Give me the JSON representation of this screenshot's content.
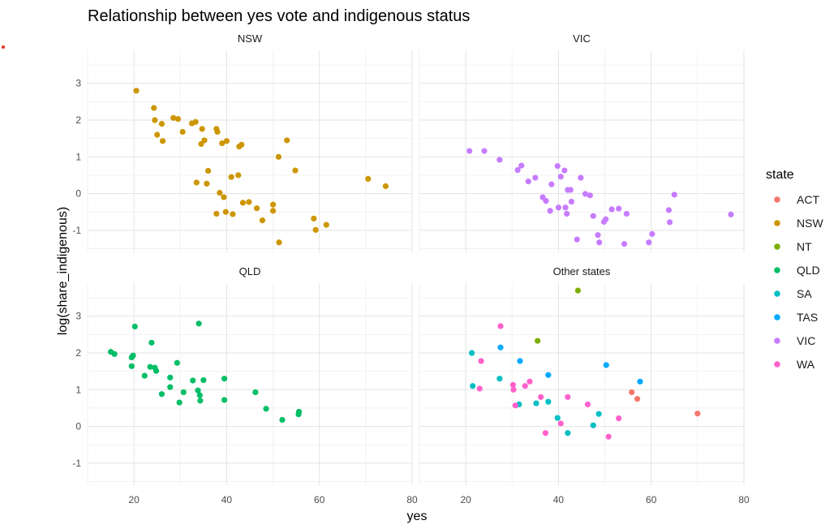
{
  "chart_data": {
    "type": "scatter",
    "title": "Relationship between yes vote and indigenous status",
    "xlabel": "yes",
    "ylabel": "log(share_indigenous)",
    "xlim": [
      10,
      80
    ],
    "ylim": [
      -1.6,
      3.9
    ],
    "xticks": [
      20,
      40,
      60,
      80
    ],
    "yticks": [
      -1,
      0,
      1,
      2,
      3
    ],
    "legend": {
      "title": "state",
      "placement": "right",
      "entries": [
        {
          "name": "ACT",
          "color": "#F8766D"
        },
        {
          "name": "NSW",
          "color": "#CD9600"
        },
        {
          "name": "NT",
          "color": "#7CAE00"
        },
        {
          "name": "QLD",
          "color": "#00BE67"
        },
        {
          "name": "SA",
          "color": "#00BFC4"
        },
        {
          "name": "TAS",
          "color": "#00A9FF"
        },
        {
          "name": "VIC",
          "color": "#C77CFF"
        },
        {
          "name": "WA",
          "color": "#FF61CC"
        }
      ]
    },
    "panels": [
      {
        "title": "NSW",
        "points": [
          {
            "state": "NSW",
            "x": 20.5,
            "y": 2.8
          },
          {
            "state": "NSW",
            "x": 24.3,
            "y": 2.33
          },
          {
            "state": "NSW",
            "x": 24.5,
            "y": 2.0
          },
          {
            "state": "NSW",
            "x": 26.0,
            "y": 1.9
          },
          {
            "state": "NSW",
            "x": 25.0,
            "y": 1.6
          },
          {
            "state": "NSW",
            "x": 26.2,
            "y": 1.43
          },
          {
            "state": "NSW",
            "x": 28.5,
            "y": 2.06
          },
          {
            "state": "NSW",
            "x": 29.5,
            "y": 2.03
          },
          {
            "state": "NSW",
            "x": 30.5,
            "y": 1.68
          },
          {
            "state": "NSW",
            "x": 32.5,
            "y": 1.91
          },
          {
            "state": "NSW",
            "x": 33.3,
            "y": 1.95
          },
          {
            "state": "NSW",
            "x": 34.7,
            "y": 1.76
          },
          {
            "state": "NSW",
            "x": 35.2,
            "y": 1.45
          },
          {
            "state": "NSW",
            "x": 34.5,
            "y": 1.35
          },
          {
            "state": "NSW",
            "x": 37.8,
            "y": 1.76
          },
          {
            "state": "NSW",
            "x": 38.0,
            "y": 1.68
          },
          {
            "state": "NSW",
            "x": 39.0,
            "y": 1.37
          },
          {
            "state": "NSW",
            "x": 40.0,
            "y": 1.43
          },
          {
            "state": "NSW",
            "x": 42.7,
            "y": 1.28
          },
          {
            "state": "NSW",
            "x": 43.2,
            "y": 1.33
          },
          {
            "state": "NSW",
            "x": 33.5,
            "y": 0.3
          },
          {
            "state": "NSW",
            "x": 36.0,
            "y": 0.62
          },
          {
            "state": "NSW",
            "x": 35.7,
            "y": 0.27
          },
          {
            "state": "NSW",
            "x": 38.5,
            "y": 0.02
          },
          {
            "state": "NSW",
            "x": 39.4,
            "y": -0.1
          },
          {
            "state": "NSW",
            "x": 37.8,
            "y": -0.55
          },
          {
            "state": "NSW",
            "x": 39.8,
            "y": -0.5
          },
          {
            "state": "NSW",
            "x": 41.3,
            "y": -0.56
          },
          {
            "state": "NSW",
            "x": 41.0,
            "y": 0.45
          },
          {
            "state": "NSW",
            "x": 42.5,
            "y": 0.5
          },
          {
            "state": "NSW",
            "x": 43.5,
            "y": -0.25
          },
          {
            "state": "NSW",
            "x": 44.8,
            "y": -0.23
          },
          {
            "state": "NSW",
            "x": 46.5,
            "y": -0.4
          },
          {
            "state": "NSW",
            "x": 47.7,
            "y": -0.73
          },
          {
            "state": "NSW",
            "x": 50.0,
            "y": -0.3
          },
          {
            "state": "NSW",
            "x": 50.0,
            "y": -0.47
          },
          {
            "state": "NSW",
            "x": 51.2,
            "y": 1.0
          },
          {
            "state": "NSW",
            "x": 51.3,
            "y": -1.33
          },
          {
            "state": "NSW",
            "x": 53.0,
            "y": 1.45
          },
          {
            "state": "NSW",
            "x": 54.8,
            "y": 0.63
          },
          {
            "state": "NSW",
            "x": 58.8,
            "y": -0.68
          },
          {
            "state": "NSW",
            "x": 59.2,
            "y": -0.99
          },
          {
            "state": "NSW",
            "x": 61.5,
            "y": -0.85
          },
          {
            "state": "NSW",
            "x": 70.5,
            "y": 0.4
          },
          {
            "state": "NSW",
            "x": 74.3,
            "y": 0.2
          }
        ]
      },
      {
        "title": "VIC",
        "points": [
          {
            "state": "VIC",
            "x": 20.8,
            "y": 1.16
          },
          {
            "state": "VIC",
            "x": 24.0,
            "y": 1.16
          },
          {
            "state": "VIC",
            "x": 27.3,
            "y": 0.92
          },
          {
            "state": "VIC",
            "x": 31.2,
            "y": 0.64
          },
          {
            "state": "VIC",
            "x": 32.0,
            "y": 0.76
          },
          {
            "state": "VIC",
            "x": 33.5,
            "y": 0.33
          },
          {
            "state": "VIC",
            "x": 35.0,
            "y": 0.43
          },
          {
            "state": "VIC",
            "x": 36.6,
            "y": -0.1
          },
          {
            "state": "VIC",
            "x": 37.3,
            "y": -0.2
          },
          {
            "state": "VIC",
            "x": 38.2,
            "y": -0.47
          },
          {
            "state": "VIC",
            "x": 38.5,
            "y": 0.25
          },
          {
            "state": "VIC",
            "x": 39.8,
            "y": 0.75
          },
          {
            "state": "VIC",
            "x": 40.0,
            "y": -0.38
          },
          {
            "state": "VIC",
            "x": 40.5,
            "y": 0.46
          },
          {
            "state": "VIC",
            "x": 41.3,
            "y": 0.63
          },
          {
            "state": "VIC",
            "x": 41.5,
            "y": -0.38
          },
          {
            "state": "VIC",
            "x": 41.8,
            "y": -0.55
          },
          {
            "state": "VIC",
            "x": 42.0,
            "y": 0.1
          },
          {
            "state": "VIC",
            "x": 42.6,
            "y": 0.1
          },
          {
            "state": "VIC",
            "x": 42.8,
            "y": -0.22
          },
          {
            "state": "VIC",
            "x": 44.0,
            "y": -1.25
          },
          {
            "state": "VIC",
            "x": 44.8,
            "y": 0.43
          },
          {
            "state": "VIC",
            "x": 45.8,
            "y": -0.01
          },
          {
            "state": "VIC",
            "x": 46.8,
            "y": -0.05
          },
          {
            "state": "VIC",
            "x": 47.5,
            "y": -0.61
          },
          {
            "state": "VIC",
            "x": 48.5,
            "y": -1.13
          },
          {
            "state": "VIC",
            "x": 48.8,
            "y": -1.33
          },
          {
            "state": "VIC",
            "x": 49.8,
            "y": -0.77
          },
          {
            "state": "VIC",
            "x": 50.2,
            "y": -0.7
          },
          {
            "state": "VIC",
            "x": 51.5,
            "y": -0.43
          },
          {
            "state": "VIC",
            "x": 53.0,
            "y": -0.41
          },
          {
            "state": "VIC",
            "x": 54.2,
            "y": -1.37
          },
          {
            "state": "VIC",
            "x": 54.7,
            "y": -0.55
          },
          {
            "state": "VIC",
            "x": 59.5,
            "y": -1.33
          },
          {
            "state": "VIC",
            "x": 60.2,
            "y": -1.1
          },
          {
            "state": "VIC",
            "x": 63.8,
            "y": -0.45
          },
          {
            "state": "VIC",
            "x": 64.0,
            "y": -0.78
          },
          {
            "state": "VIC",
            "x": 65.0,
            "y": -0.03
          },
          {
            "state": "VIC",
            "x": 77.2,
            "y": -0.57
          }
        ]
      },
      {
        "title": "QLD",
        "points": [
          {
            "state": "QLD",
            "x": 15.0,
            "y": 2.03
          },
          {
            "state": "QLD",
            "x": 15.8,
            "y": 1.97
          },
          {
            "state": "QLD",
            "x": 19.5,
            "y": 1.88
          },
          {
            "state": "QLD",
            "x": 19.8,
            "y": 1.93
          },
          {
            "state": "QLD",
            "x": 19.5,
            "y": 1.64
          },
          {
            "state": "QLD",
            "x": 20.2,
            "y": 2.72
          },
          {
            "state": "QLD",
            "x": 22.3,
            "y": 1.38
          },
          {
            "state": "QLD",
            "x": 23.5,
            "y": 1.62
          },
          {
            "state": "QLD",
            "x": 23.8,
            "y": 2.28
          },
          {
            "state": "QLD",
            "x": 24.5,
            "y": 1.6
          },
          {
            "state": "QLD",
            "x": 24.8,
            "y": 1.51
          },
          {
            "state": "QLD",
            "x": 26.0,
            "y": 0.88
          },
          {
            "state": "QLD",
            "x": 27.8,
            "y": 1.33
          },
          {
            "state": "QLD",
            "x": 27.8,
            "y": 1.07
          },
          {
            "state": "QLD",
            "x": 29.3,
            "y": 1.73
          },
          {
            "state": "QLD",
            "x": 29.8,
            "y": 0.65
          },
          {
            "state": "QLD",
            "x": 30.7,
            "y": 0.93
          },
          {
            "state": "QLD",
            "x": 32.7,
            "y": 1.25
          },
          {
            "state": "QLD",
            "x": 33.8,
            "y": 0.98
          },
          {
            "state": "QLD",
            "x": 34.0,
            "y": 2.8
          },
          {
            "state": "QLD",
            "x": 34.2,
            "y": 0.85
          },
          {
            "state": "QLD",
            "x": 34.3,
            "y": 0.7
          },
          {
            "state": "QLD",
            "x": 35.0,
            "y": 1.26
          },
          {
            "state": "QLD",
            "x": 39.5,
            "y": 1.3
          },
          {
            "state": "QLD",
            "x": 39.5,
            "y": 0.72
          },
          {
            "state": "QLD",
            "x": 46.2,
            "y": 0.93
          },
          {
            "state": "QLD",
            "x": 48.5,
            "y": 0.48
          },
          {
            "state": "QLD",
            "x": 52.0,
            "y": 0.18
          },
          {
            "state": "QLD",
            "x": 55.5,
            "y": 0.33
          },
          {
            "state": "QLD",
            "x": 55.6,
            "y": 0.4
          }
        ]
      },
      {
        "title": "Other states",
        "points": [
          {
            "state": "NT",
            "x": 44.2,
            "y": 3.7
          },
          {
            "state": "NT",
            "x": 35.5,
            "y": 2.33
          },
          {
            "state": "SA",
            "x": 21.3,
            "y": 2.0
          },
          {
            "state": "SA",
            "x": 21.5,
            "y": 1.1
          },
          {
            "state": "SA",
            "x": 27.3,
            "y": 1.3
          },
          {
            "state": "SA",
            "x": 31.5,
            "y": 0.6
          },
          {
            "state": "SA",
            "x": 35.2,
            "y": 0.63
          },
          {
            "state": "SA",
            "x": 37.8,
            "y": 0.67
          },
          {
            "state": "SA",
            "x": 39.8,
            "y": 0.23
          },
          {
            "state": "SA",
            "x": 42.0,
            "y": -0.18
          },
          {
            "state": "SA",
            "x": 47.5,
            "y": 0.03
          },
          {
            "state": "SA",
            "x": 48.7,
            "y": 0.34
          },
          {
            "state": "TAS",
            "x": 27.5,
            "y": 2.15
          },
          {
            "state": "TAS",
            "x": 31.7,
            "y": 1.78
          },
          {
            "state": "TAS",
            "x": 37.8,
            "y": 1.4
          },
          {
            "state": "TAS",
            "x": 50.3,
            "y": 1.67
          },
          {
            "state": "TAS",
            "x": 57.6,
            "y": 1.22
          },
          {
            "state": "WA",
            "x": 23.3,
            "y": 1.78
          },
          {
            "state": "WA",
            "x": 27.5,
            "y": 2.73
          },
          {
            "state": "WA",
            "x": 23.0,
            "y": 1.03
          },
          {
            "state": "WA",
            "x": 30.2,
            "y": 1.13
          },
          {
            "state": "WA",
            "x": 30.3,
            "y": 1.0
          },
          {
            "state": "WA",
            "x": 30.7,
            "y": 0.57
          },
          {
            "state": "WA",
            "x": 32.8,
            "y": 1.1
          },
          {
            "state": "WA",
            "x": 33.8,
            "y": 1.22
          },
          {
            "state": "WA",
            "x": 36.2,
            "y": 0.8
          },
          {
            "state": "WA",
            "x": 37.2,
            "y": -0.18
          },
          {
            "state": "WA",
            "x": 40.5,
            "y": 0.08
          },
          {
            "state": "WA",
            "x": 42.0,
            "y": 0.8
          },
          {
            "state": "WA",
            "x": 46.3,
            "y": 0.6
          },
          {
            "state": "WA",
            "x": 50.8,
            "y": -0.28
          },
          {
            "state": "WA",
            "x": 53.0,
            "y": 0.22
          },
          {
            "state": "ACT",
            "x": 55.8,
            "y": 0.93
          },
          {
            "state": "ACT",
            "x": 57.0,
            "y": 0.75
          },
          {
            "state": "ACT",
            "x": 70.0,
            "y": 0.35
          }
        ]
      }
    ]
  }
}
